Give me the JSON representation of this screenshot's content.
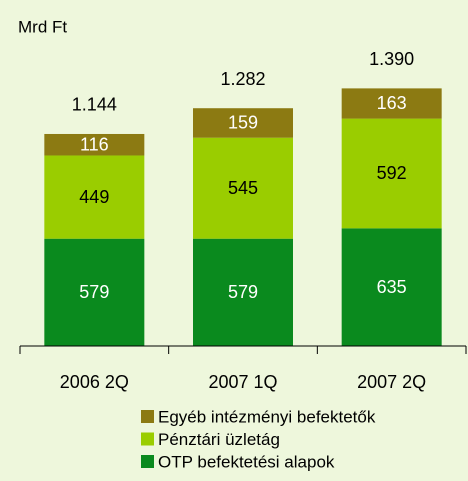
{
  "chart_data": {
    "type": "stacked_bar",
    "unit_label": "Mrd Ft",
    "categories": [
      "2006 2Q",
      "2007 1Q",
      "2007 2Q"
    ],
    "series": [
      {
        "name": "OTP befektetési alapok",
        "color": "#0a8a1e",
        "label_color": "#ffffff",
        "values": [
          579,
          579,
          635
        ]
      },
      {
        "name": "Pénztári üzletág",
        "color": "#9acd00",
        "label_color": "#000000",
        "values": [
          449,
          545,
          592
        ]
      },
      {
        "name": "Egyéb intézményi befektetők",
        "color": "#8c7a12",
        "label_color": "#ffffff",
        "values": [
          116,
          159,
          163
        ]
      }
    ],
    "totals": {
      "values": [
        1144,
        1282,
        1390
      ],
      "value_labels": [
        "1.144",
        "1.282",
        "1.390"
      ]
    },
    "ylim": [
      0,
      1500
    ]
  }
}
